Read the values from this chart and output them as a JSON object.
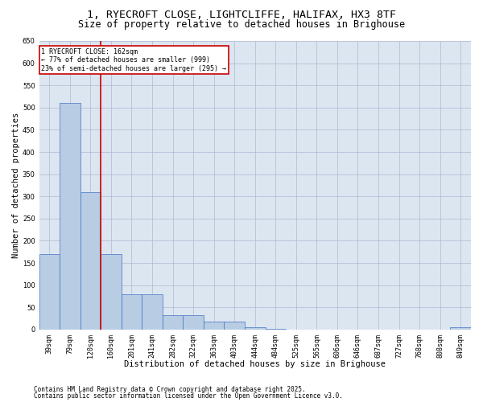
{
  "title_line1": "1, RYECROFT CLOSE, LIGHTCLIFFE, HALIFAX, HX3 8TF",
  "title_line2": "Size of property relative to detached houses in Brighouse",
  "xlabel": "Distribution of detached houses by size in Brighouse",
  "ylabel": "Number of detached properties",
  "categories": [
    "39sqm",
    "79sqm",
    "120sqm",
    "160sqm",
    "201sqm",
    "241sqm",
    "282sqm",
    "322sqm",
    "363sqm",
    "403sqm",
    "444sqm",
    "484sqm",
    "525sqm",
    "565sqm",
    "606sqm",
    "646sqm",
    "687sqm",
    "727sqm",
    "768sqm",
    "808sqm",
    "849sqm"
  ],
  "values": [
    170,
    510,
    310,
    170,
    80,
    80,
    33,
    33,
    18,
    18,
    5,
    1,
    0,
    0,
    0,
    0,
    0,
    0,
    0,
    0,
    5
  ],
  "bar_color": "#b8cce4",
  "bar_edge_color": "#4472c4",
  "grid_color": "#b0b8d0",
  "background_color": "#dce6f1",
  "marker_line_index": 3,
  "marker_line_color": "#cc0000",
  "annotation_text": "1 RYECROFT CLOSE: 162sqm\n← 77% of detached houses are smaller (999)\n23% of semi-detached houses are larger (295) →",
  "annotation_box_color": "#cc0000",
  "ylim": [
    0,
    650
  ],
  "yticks": [
    0,
    50,
    100,
    150,
    200,
    250,
    300,
    350,
    400,
    450,
    500,
    550,
    600,
    650
  ],
  "footer_line1": "Contains HM Land Registry data © Crown copyright and database right 2025.",
  "footer_line2": "Contains public sector information licensed under the Open Government Licence v3.0.",
  "title_fontsize": 9.5,
  "subtitle_fontsize": 8.5,
  "tick_fontsize": 6,
  "label_fontsize": 7.5,
  "annot_fontsize": 6.0,
  "footer_fontsize": 5.5
}
